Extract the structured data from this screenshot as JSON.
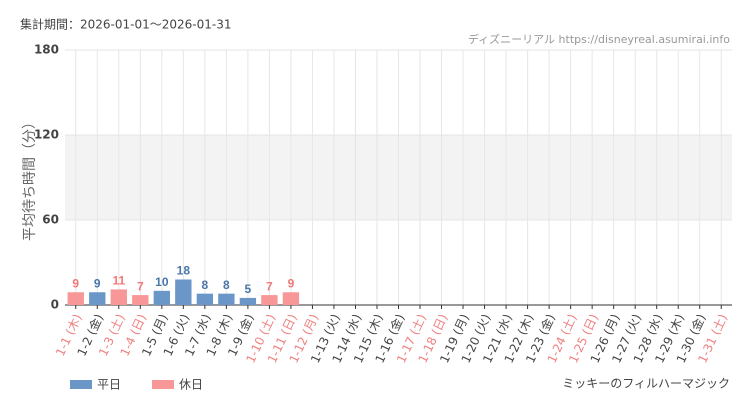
{
  "chart_data": {
    "type": "bar",
    "period_label": "集計期間：2026-01-01～2026-01-31",
    "source": "ディズニーリアル https://disneyreal.asumirai.info",
    "y_label": "平均待ち時間（分）",
    "attraction": "ミッキーのフィルハーマジック",
    "categories": [
      "1-1 (木)",
      "1-2 (金)",
      "1-3 (土)",
      "1-4 (日)",
      "1-5 (月)",
      "1-6 (火)",
      "1-7 (水)",
      "1-8 (木)",
      "1-9 (金)",
      "1-10 (土)",
      "1-11 (日)",
      "1-12 (月)",
      "1-13 (火)",
      "1-14 (水)",
      "1-15 (木)",
      "1-16 (金)",
      "1-17 (土)",
      "1-18 (日)",
      "1-19 (月)",
      "1-20 (火)",
      "1-21 (水)",
      "1-22 (木)",
      "1-23 (金)",
      "1-24 (土)",
      "1-25 (日)",
      "1-26 (月)",
      "1-27 (火)",
      "1-28 (水)",
      "1-29 (木)",
      "1-30 (金)",
      "1-31 (土)"
    ],
    "category_label_colors": [
      "#f08080",
      "#444",
      "#f08080",
      "#f08080",
      "#444",
      "#444",
      "#444",
      "#444",
      "#444",
      "#f08080",
      "#f08080",
      "#f08080",
      "#444",
      "#444",
      "#444",
      "#444",
      "#f08080",
      "#f08080",
      "#444",
      "#444",
      "#444",
      "#444",
      "#444",
      "#f08080",
      "#f08080",
      "#444",
      "#444",
      "#444",
      "#444",
      "#444",
      "#f08080"
    ],
    "series": [
      {
        "name": "平日",
        "color": "#6a96c8",
        "label_color": "#4a76a8",
        "values": [
          null,
          9,
          null,
          null,
          10,
          18,
          8,
          8,
          5,
          null,
          null,
          null,
          null,
          null,
          null,
          null,
          null,
          null,
          null,
          null,
          null,
          null,
          null,
          null,
          null,
          null,
          null,
          null,
          null,
          null,
          null
        ]
      },
      {
        "name": "休日",
        "color": "#f79797",
        "label_color": "#f07a7a",
        "values": [
          9,
          null,
          11,
          7,
          null,
          null,
          null,
          null,
          null,
          7,
          9,
          null,
          null,
          null,
          null,
          null,
          null,
          null,
          null,
          null,
          null,
          null,
          null,
          null,
          null,
          null,
          null,
          null,
          null,
          null,
          null
        ]
      }
    ],
    "ylim": [
      0,
      180
    ],
    "yticks": [
      0,
      60,
      120,
      180
    ],
    "grid": true,
    "band_shading": true
  }
}
